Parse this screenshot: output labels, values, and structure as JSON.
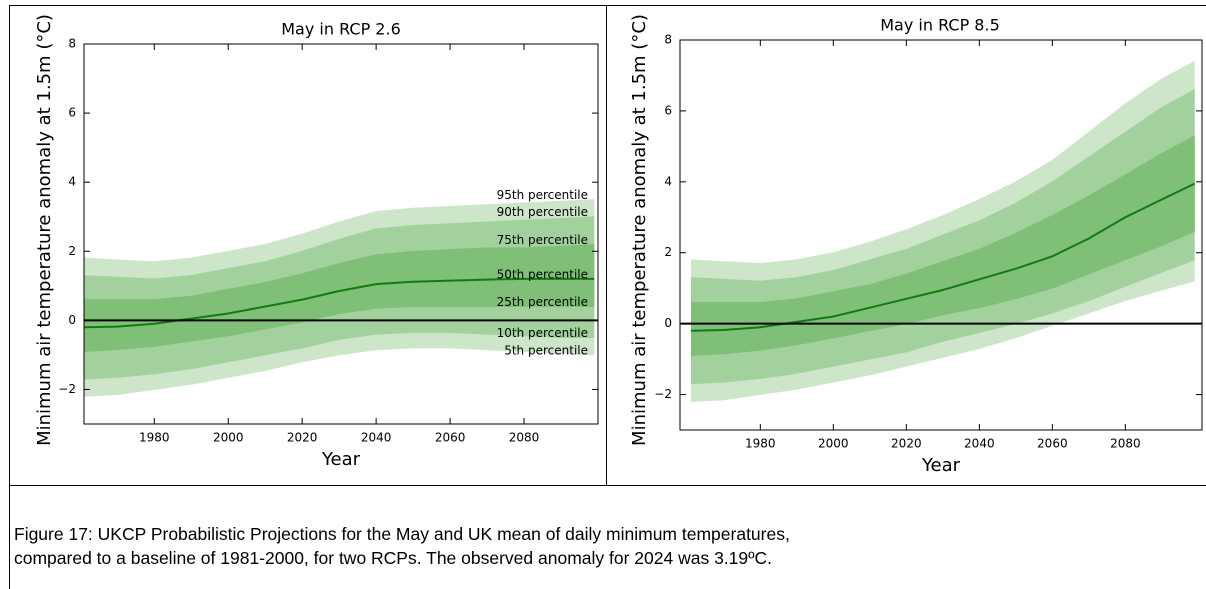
{
  "chart_data": [
    {
      "type": "band",
      "title": "May in RCP 2.6",
      "xlabel": "Year",
      "ylabel": "Minimum air temperature anomaly at 1.5m (°C)",
      "x": [
        1961,
        1970,
        1980,
        1990,
        2000,
        2010,
        2020,
        2030,
        2040,
        2050,
        2060,
        2070,
        2080,
        2090,
        2099
      ],
      "xlim": [
        1961,
        2100
      ],
      "ylim": [
        -3,
        8
      ],
      "xticks": [
        1980,
        2000,
        2020,
        2040,
        2060,
        2080
      ],
      "yticks": [
        {
          "value": -2,
          "label": "−2"
        },
        0,
        2,
        4,
        6,
        8
      ],
      "series": [
        {
          "name": "5th percentile",
          "color": "#cde6c9",
          "values": [
            -2.2,
            -2.15,
            -2.0,
            -1.85,
            -1.65,
            -1.45,
            -1.2,
            -1.0,
            -0.85,
            -0.8,
            -0.8,
            -0.85,
            -0.9,
            -0.95,
            -1.0
          ]
        },
        {
          "name": "10th percentile",
          "color": "#a3d19d",
          "values": [
            -1.7,
            -1.65,
            -1.55,
            -1.4,
            -1.2,
            -1.0,
            -0.8,
            -0.55,
            -0.4,
            -0.35,
            -0.35,
            -0.4,
            -0.45,
            -0.5,
            -0.5
          ]
        },
        {
          "name": "25th percentile",
          "color": "#7fbf78",
          "values": [
            -0.9,
            -0.85,
            -0.75,
            -0.6,
            -0.45,
            -0.25,
            -0.05,
            0.2,
            0.35,
            0.4,
            0.4,
            0.4,
            0.4,
            0.4,
            0.4
          ]
        },
        {
          "name": "50th percentile",
          "color": "#137a13",
          "values": [
            -0.2,
            -0.18,
            -0.1,
            0.05,
            0.2,
            0.4,
            0.6,
            0.85,
            1.05,
            1.12,
            1.15,
            1.18,
            1.2,
            1.2,
            1.2
          ]
        },
        {
          "name": "75th percentile",
          "color": "#7fbf78",
          "values": [
            0.6,
            0.6,
            0.6,
            0.7,
            0.9,
            1.1,
            1.35,
            1.65,
            1.9,
            2.0,
            2.05,
            2.1,
            2.1,
            2.15,
            2.2
          ]
        },
        {
          "name": "90th percentile",
          "color": "#a3d19d",
          "values": [
            1.3,
            1.25,
            1.2,
            1.3,
            1.5,
            1.7,
            2.0,
            2.35,
            2.65,
            2.75,
            2.8,
            2.85,
            2.9,
            2.95,
            3.0
          ]
        },
        {
          "name": "95th percentile",
          "color": "#cde6c9",
          "values": [
            1.8,
            1.75,
            1.7,
            1.8,
            2.0,
            2.2,
            2.5,
            2.85,
            3.15,
            3.25,
            3.3,
            3.35,
            3.4,
            3.45,
            3.5
          ]
        }
      ]
    },
    {
      "type": "band",
      "title": "May in RCP 8.5",
      "xlabel": "Year",
      "ylabel": "Minimum air temperature anomaly at 1.5m (°C)",
      "x": [
        1961,
        1970,
        1980,
        1990,
        2000,
        2010,
        2020,
        2030,
        2040,
        2050,
        2060,
        2070,
        2080,
        2090,
        2099
      ],
      "xlim": [
        1958,
        2101
      ],
      "ylim": [
        -3,
        8
      ],
      "xticks": [
        1980,
        2000,
        2020,
        2040,
        2060,
        2080
      ],
      "yticks": [
        {
          "value": -2,
          "label": "−2"
        },
        0,
        2,
        4,
        6,
        8
      ],
      "series": [
        {
          "color": "#cde6c9",
          "values": [
            -2.2,
            -2.15,
            -2.0,
            -1.85,
            -1.65,
            -1.45,
            -1.2,
            -0.95,
            -0.7,
            -0.4,
            -0.05,
            0.3,
            0.65,
            0.95,
            1.2
          ]
        },
        {
          "color": "#a3d19d",
          "values": [
            -1.7,
            -1.65,
            -1.55,
            -1.4,
            -1.2,
            -1.0,
            -0.8,
            -0.5,
            -0.25,
            0.0,
            0.3,
            0.65,
            1.05,
            1.45,
            1.8
          ]
        },
        {
          "color": "#7fbf78",
          "values": [
            -0.9,
            -0.85,
            -0.75,
            -0.6,
            -0.4,
            -0.2,
            0.0,
            0.25,
            0.45,
            0.7,
            1.0,
            1.4,
            1.8,
            2.2,
            2.6
          ]
        },
        {
          "color": "#137a13",
          "values": [
            -0.2,
            -0.18,
            -0.1,
            0.05,
            0.2,
            0.45,
            0.7,
            0.95,
            1.25,
            1.55,
            1.9,
            2.4,
            3.0,
            3.5,
            3.95
          ]
        },
        {
          "color": "#7fbf78",
          "values": [
            0.6,
            0.6,
            0.6,
            0.7,
            0.9,
            1.1,
            1.4,
            1.75,
            2.1,
            2.55,
            3.05,
            3.6,
            4.2,
            4.8,
            5.3
          ]
        },
        {
          "color": "#a3d19d",
          "values": [
            1.3,
            1.25,
            1.2,
            1.3,
            1.5,
            1.8,
            2.1,
            2.5,
            2.9,
            3.4,
            4.0,
            4.7,
            5.4,
            6.1,
            6.6
          ]
        },
        {
          "color": "#cde6c9",
          "values": [
            1.8,
            1.75,
            1.7,
            1.8,
            2.0,
            2.3,
            2.65,
            3.05,
            3.5,
            4.0,
            4.6,
            5.4,
            6.2,
            6.9,
            7.4
          ]
        }
      ]
    }
  ],
  "caption": "Figure 17: UKCP Probabilistic Projections for the May and UK mean of daily minimum temperatures, compared to a baseline of 1981-2000, for two RCPs. The observed anomaly for 2024 was 3.19ºC."
}
